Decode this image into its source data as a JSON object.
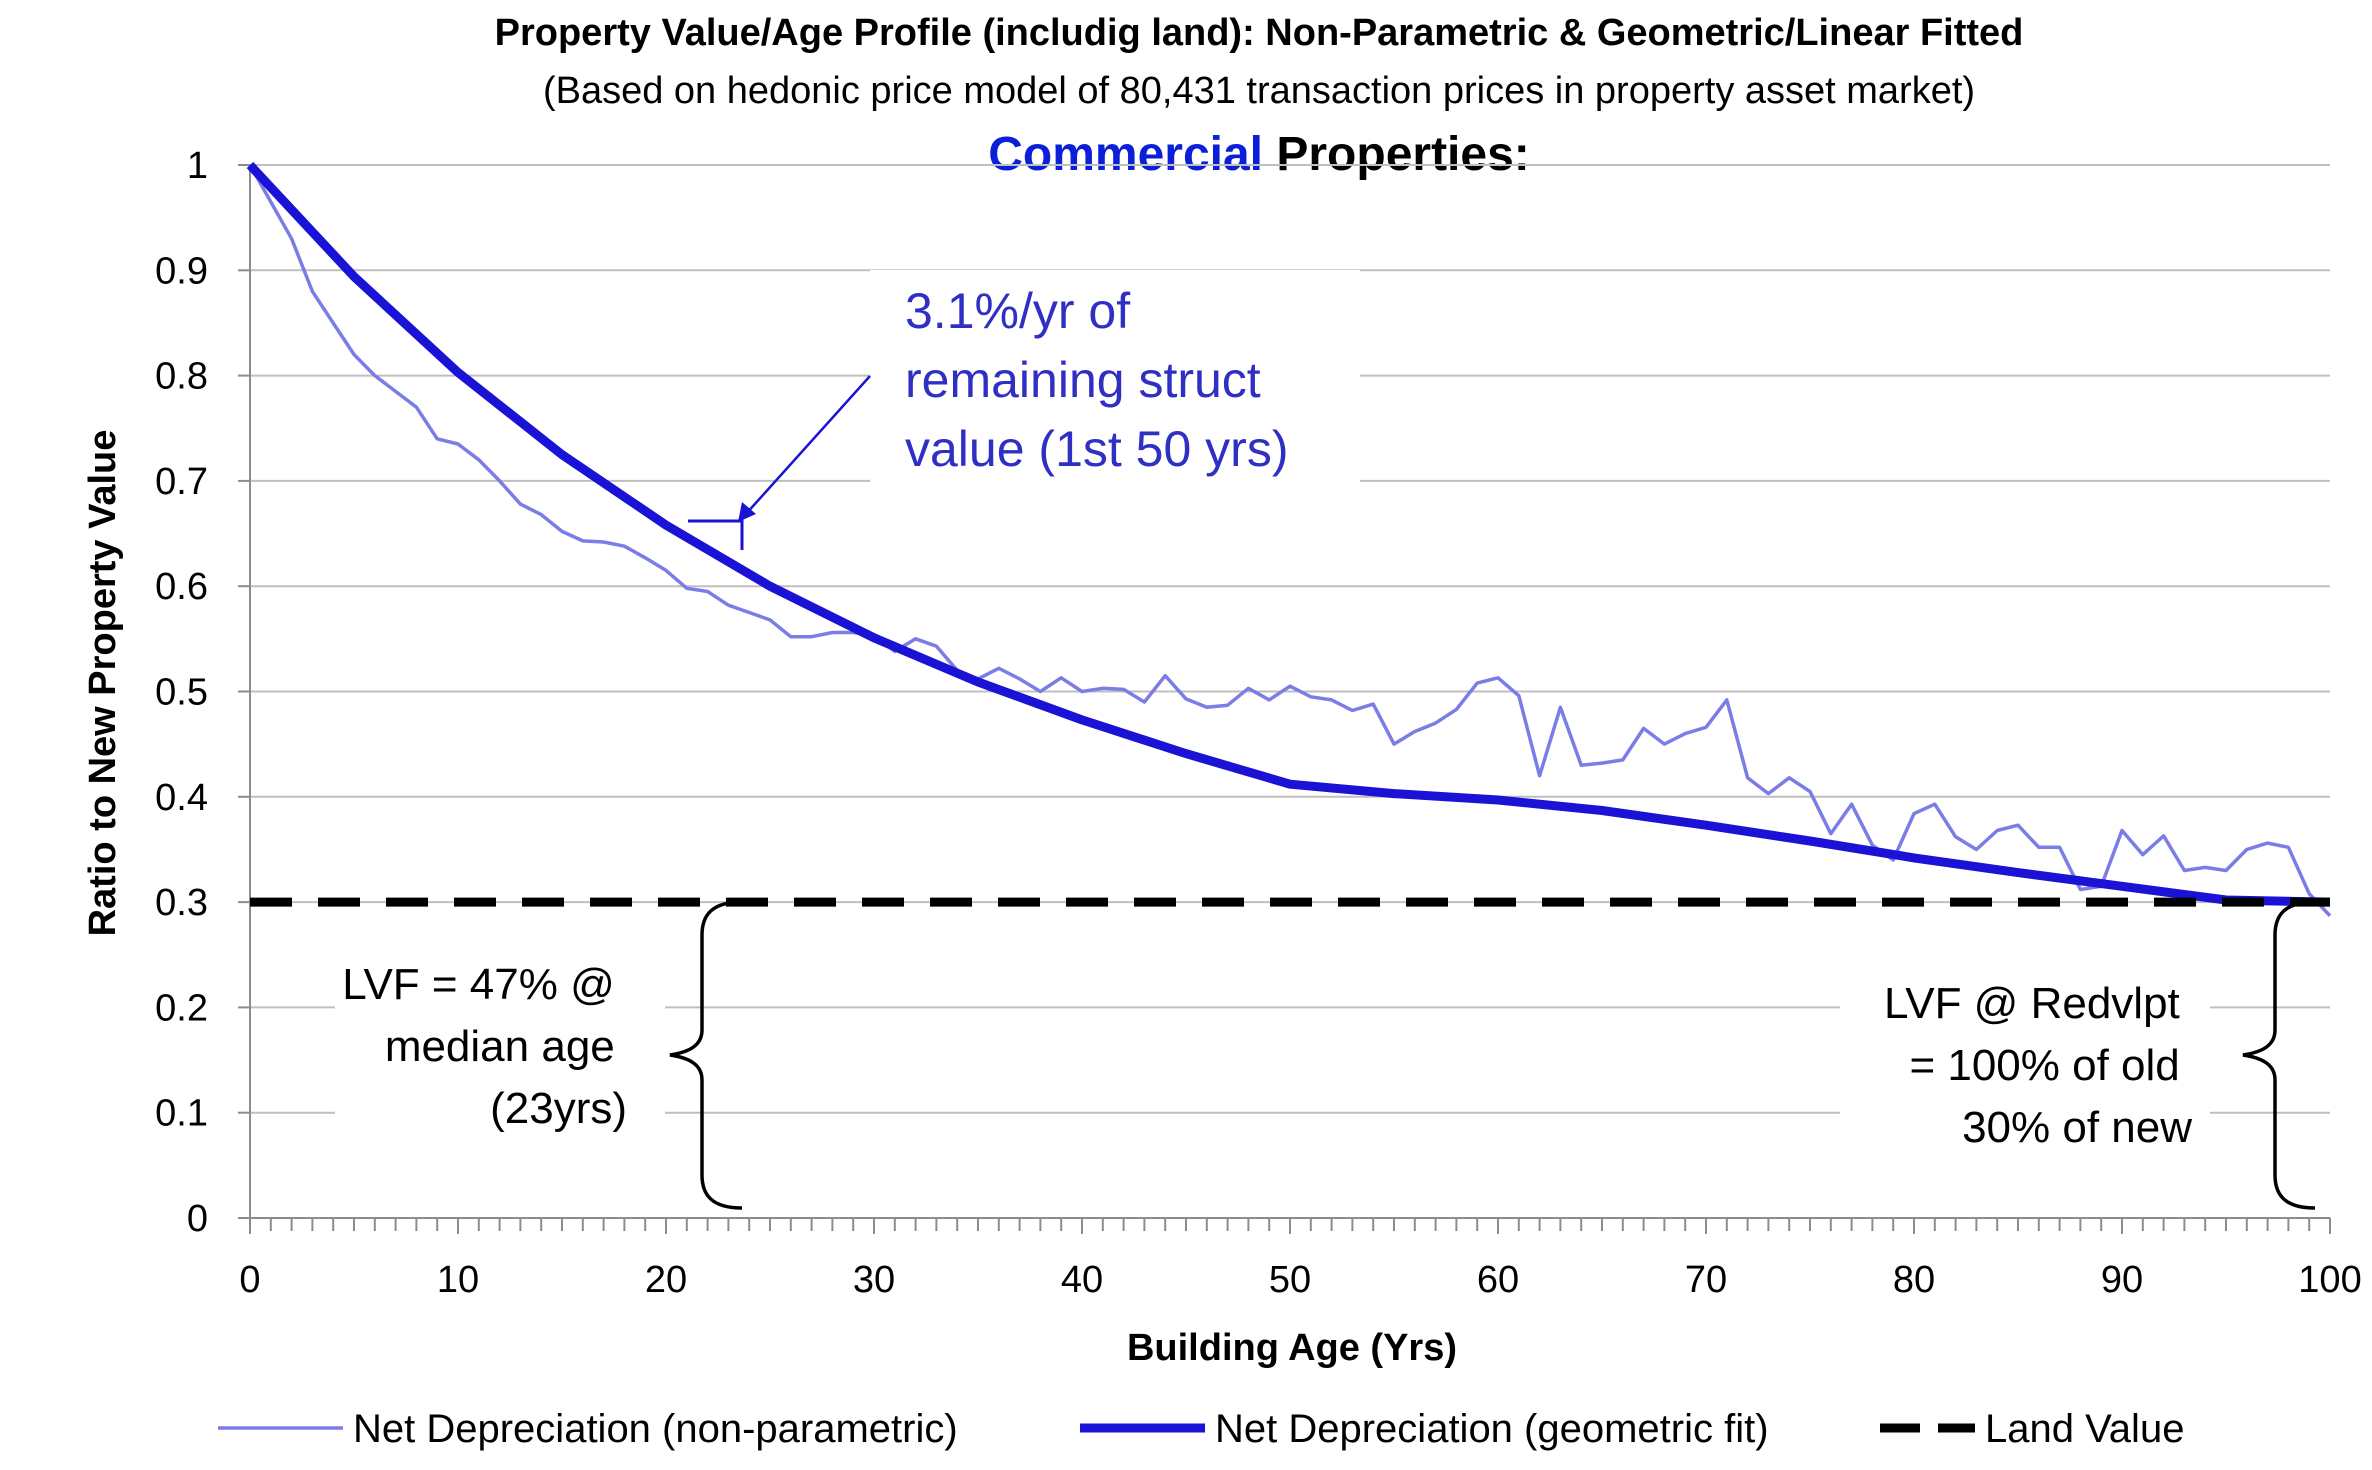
{
  "chart_data": {
    "type": "line",
    "title": "Property Value/Age Profile (includig land): Non-Parametric & Geometric/Linear Fitted",
    "subtitle": "(Based on hedonic price model of 80,431 transaction prices in property asset market)",
    "heading": {
      "accent": "Commercial",
      "rest": " Properties:"
    },
    "xlabel": "Building Age (Yrs)",
    "ylabel": "Ratio to New Property Value",
    "xlim": [
      0,
      100
    ],
    "ylim": [
      0,
      1
    ],
    "x_ticks": [
      "0",
      "10",
      "20",
      "30",
      "40",
      "50",
      "60",
      "70",
      "80",
      "90",
      "100"
    ],
    "y_ticks": [
      "0",
      "0.1",
      "0.2",
      "0.3",
      "0.4",
      "0.5",
      "0.6",
      "0.7",
      "0.8",
      "0.9",
      "1"
    ],
    "grid": "horizontal",
    "legend_position": "bottom",
    "series": [
      {
        "name": "Net Depreciation (non-parametric)",
        "color": "#7b7de6",
        "style": "thin",
        "x": [
          0,
          1,
          2,
          3,
          4,
          5,
          6,
          7,
          8,
          9,
          10,
          11,
          12,
          13,
          14,
          15,
          16,
          17,
          18,
          19,
          20,
          21,
          22,
          23,
          24,
          25,
          26,
          27,
          28,
          29,
          30,
          31,
          32,
          33,
          34,
          35,
          36,
          37,
          38,
          39,
          40,
          41,
          42,
          43,
          44,
          45,
          46,
          47,
          48,
          49,
          50,
          51,
          52,
          53,
          54,
          55,
          56,
          57,
          58,
          59,
          60,
          61,
          62,
          63,
          64,
          65,
          66,
          67,
          68,
          69,
          70,
          71,
          72,
          73,
          74,
          75,
          76,
          77,
          78,
          79,
          80,
          81,
          82,
          83,
          84,
          85,
          86,
          87,
          88,
          89,
          90,
          91,
          92,
          93,
          94,
          95,
          96,
          97,
          98,
          99,
          100
        ],
        "values": [
          1.0,
          0.965,
          0.93,
          0.88,
          0.85,
          0.82,
          0.8,
          0.785,
          0.77,
          0.74,
          0.735,
          0.72,
          0.7,
          0.678,
          0.668,
          0.652,
          0.643,
          0.642,
          0.638,
          0.627,
          0.615,
          0.598,
          0.595,
          0.582,
          0.575,
          0.568,
          0.552,
          0.552,
          0.556,
          0.556,
          0.553,
          0.538,
          0.55,
          0.543,
          0.52,
          0.512,
          0.522,
          0.512,
          0.5,
          0.513,
          0.5,
          0.503,
          0.502,
          0.49,
          0.515,
          0.493,
          0.485,
          0.487,
          0.503,
          0.492,
          0.505,
          0.495,
          0.492,
          0.482,
          0.488,
          0.45,
          0.462,
          0.47,
          0.483,
          0.508,
          0.513,
          0.496,
          0.42,
          0.485,
          0.43,
          0.432,
          0.435,
          0.465,
          0.45,
          0.46,
          0.466,
          0.492,
          0.418,
          0.403,
          0.418,
          0.405,
          0.365,
          0.393,
          0.354,
          0.34,
          0.384,
          0.393,
          0.362,
          0.35,
          0.368,
          0.373,
          0.352,
          0.352,
          0.312,
          0.315,
          0.368,
          0.345,
          0.363,
          0.33,
          0.333,
          0.33,
          0.35,
          0.356,
          0.352,
          0.308,
          0.287
        ]
      },
      {
        "name": "Net Depreciation (geometric fit)",
        "color": "#1a12d4",
        "style": "thick",
        "x": [
          0,
          5,
          10,
          15,
          20,
          25,
          30,
          35,
          40,
          45,
          50,
          55,
          60,
          65,
          70,
          75,
          80,
          85,
          90,
          95,
          100
        ],
        "values": [
          1.0,
          0.894,
          0.803,
          0.725,
          0.658,
          0.6,
          0.551,
          0.509,
          0.473,
          0.441,
          0.412,
          0.403,
          0.397,
          0.387,
          0.373,
          0.358,
          0.342,
          0.328,
          0.315,
          0.302,
          0.3
        ]
      },
      {
        "name": "Land Value",
        "color": "#000000",
        "style": "dashed",
        "x": [
          0,
          100
        ],
        "values": [
          0.3,
          0.3
        ]
      }
    ],
    "annotations": {
      "rate": [
        "3.1%/yr of",
        "remaining struct",
        "value (1st 50 yrs)"
      ],
      "lvf_median": [
        "LVF = 47% @",
        "median age",
        "(23yrs)"
      ],
      "lvf_redevelopment": [
        "LVF @ Redvlpt",
        "= 100% of old",
        "30% of new"
      ]
    }
  }
}
